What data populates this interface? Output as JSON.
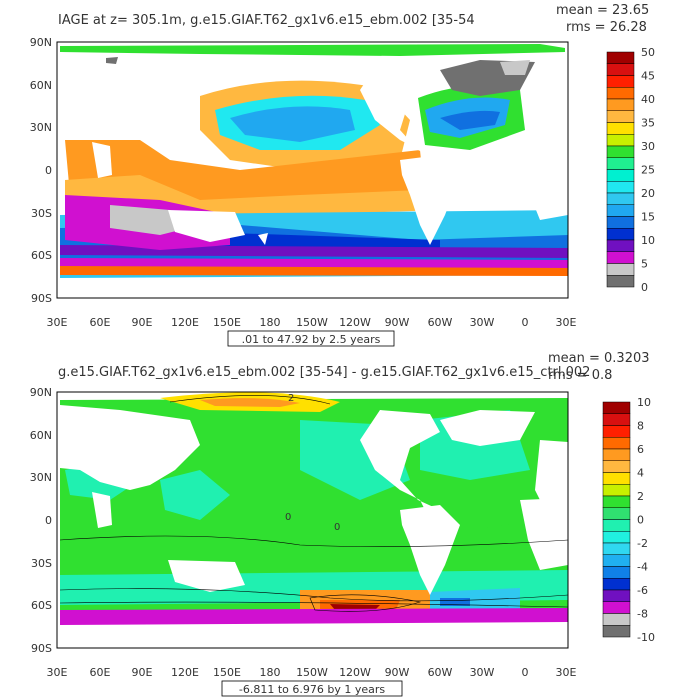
{
  "colors": {
    "land": "#ffffff",
    "frame": "#000000",
    "contour": "#000000"
  },
  "panels": [
    {
      "title": "IAGE at z=  305.1m, g.e15.GIAF.T62_gx1v6.e15_ebm.002 [35-54",
      "stats": {
        "mean": "mean = 23.65",
        "rms": "rms = 26.28"
      },
      "range_note": ".01 to 47.92 by 2.5 years",
      "lat_ticks": [
        "90N",
        "60N",
        "30N",
        "0",
        "30S",
        "60S",
        "90S"
      ],
      "lon_ticks": [
        "30E",
        "60E",
        "90E",
        "120E",
        "150E",
        "180",
        "150W",
        "120W",
        "90W",
        "60W",
        "30W",
        "0",
        "30E"
      ],
      "colorbar": {
        "labels": [
          "50",
          "45",
          "40",
          "35",
          "30",
          "25",
          "20",
          "15",
          "10",
          "5",
          "0"
        ],
        "colors": [
          "#a00000",
          "#d81010",
          "#ff2000",
          "#ff6a00",
          "#ff9a20",
          "#ffb840",
          "#ffe000",
          "#c8f000",
          "#30e030",
          "#20f090",
          "#00f0d0",
          "#20e8f0",
          "#30c8f0",
          "#20a8f0",
          "#1070e0",
          "#0030d0",
          "#7010c0",
          "#d010d0",
          "#c8c8c8",
          "#707070"
        ]
      }
    },
    {
      "title": "g.e15.GIAF.T62_gx1v6.e15_ebm.002 [35-54] - g.e15.GIAF.T62_gx1v6.e15_ctrl.002",
      "stats": {
        "mean": "mean = 0.3203",
        "rms": "rms = 0.8"
      },
      "range_note": "-6.811 to 6.976 by 1 years",
      "lat_ticks": [
        "90N",
        "60N",
        "30N",
        "0",
        "30S",
        "60S",
        "90S"
      ],
      "lon_ticks": [
        "30E",
        "60E",
        "90E",
        "120E",
        "150E",
        "180",
        "150W",
        "120W",
        "90W",
        "60W",
        "30W",
        "0",
        "30E"
      ],
      "colorbar": {
        "labels": [
          "10",
          "8",
          "6",
          "4",
          "2",
          "0",
          "-2",
          "-4",
          "-6",
          "-8",
          "-10"
        ],
        "colors": [
          "#a00000",
          "#d81010",
          "#ff2000",
          "#ff6a00",
          "#ff9a20",
          "#ffb840",
          "#ffe000",
          "#c8f000",
          "#30e030",
          "#30e070",
          "#20f0b0",
          "#20f0e0",
          "#30d8f0",
          "#20b0f0",
          "#1080e8",
          "#0030d0",
          "#7010c0",
          "#d010d0",
          "#c8c8c8",
          "#707070"
        ]
      },
      "contour_labels": [
        "2",
        "0",
        "0"
      ]
    }
  ]
}
